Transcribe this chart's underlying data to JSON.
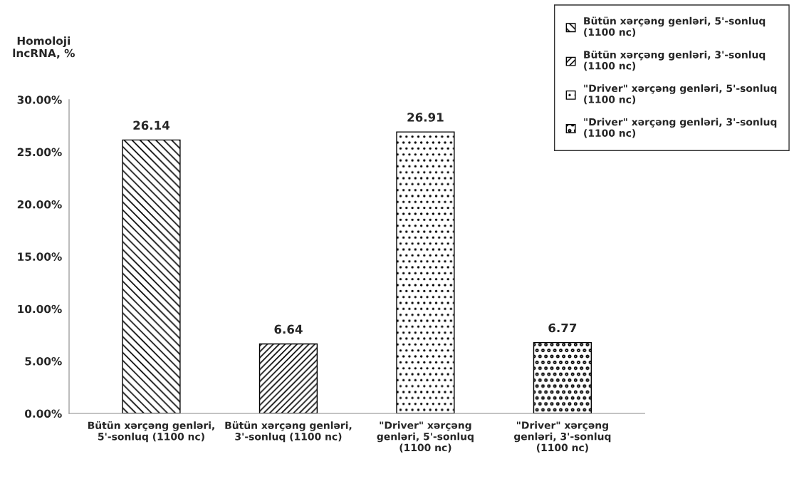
{
  "chart_data": {
    "type": "bar",
    "ylabel": "Homoloji\nlncRNA, %",
    "categories": [
      "Bütün xərçəng genləri,\n5'-sonluq (1100 nc)",
      "Bütün xərçəng genləri,\n3'-sonluq (1100 nc)",
      "\"Driver\" xərçəng\ngenləri, 5'-sonluq\n(1100 nc)",
      "\"Driver\" xərçəng\ngenləri, 3'-sonluq\n(1100 nc)"
    ],
    "series": [
      {
        "name": "Bütün xərçəng genləri, 5'-sonluq\n(1100 nc)",
        "color": "#000000",
        "values": [
          26.14,
          null,
          null,
          null
        ]
      },
      {
        "name": "Bütün xərçəng genləri, 3'-sonluq\n(1100 nc)",
        "color": "#000000",
        "values": [
          null,
          6.64,
          null,
          null
        ]
      },
      {
        "name": "\"Driver\" xərçəng genləri, 5'-sonluq\n(1100 nc)",
        "color": "#000000",
        "values": [
          null,
          null,
          26.91,
          null
        ]
      },
      {
        "name": "\"Driver\" xərçəng genləri, 3'-sonluq\n(1100 nc)",
        "color": "#000000",
        "values": [
          null,
          null,
          null,
          6.77
        ]
      }
    ],
    "ylim": [
      0,
      30
    ],
    "yticks": [
      {
        "value": 0,
        "label": "0.00%"
      },
      {
        "value": 5,
        "label": "5.00%"
      },
      {
        "value": 10,
        "label": "10.00%"
      },
      {
        "value": 15,
        "label": "15.00%"
      },
      {
        "value": 20,
        "label": "20.00%"
      },
      {
        "value": 25,
        "label": "25.00%"
      },
      {
        "value": 30,
        "label": "30.00%"
      }
    ],
    "data_labels": true,
    "grid": false,
    "legend": "top right"
  }
}
